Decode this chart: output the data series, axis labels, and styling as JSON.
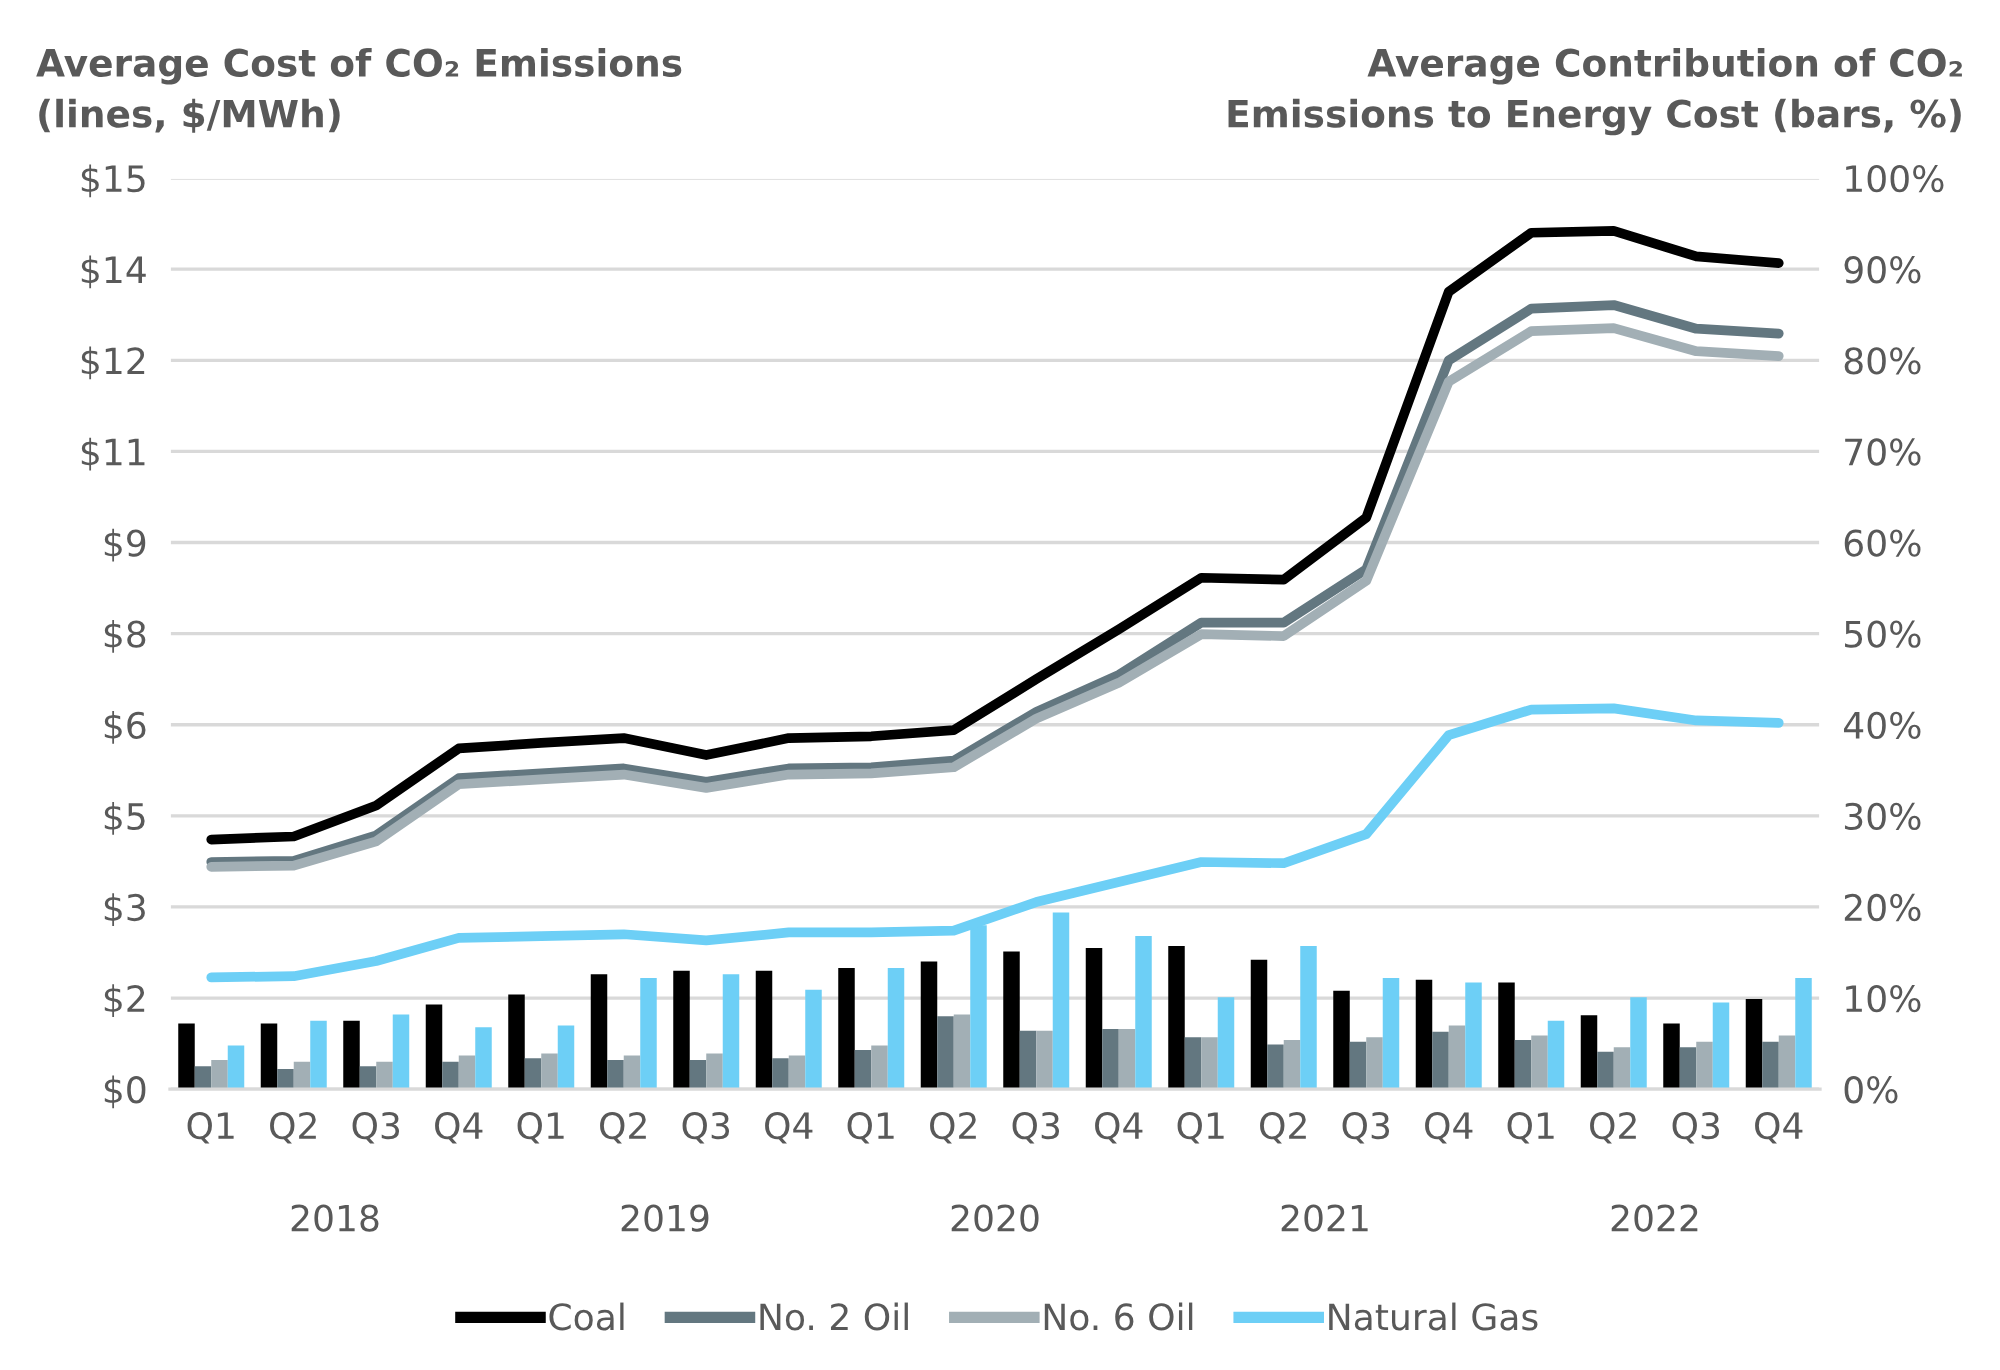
{
  "chart_data": {
    "type": "bar",
    "ylabel": "Average Cost of CO₂ Emissions\n(lines, $/MWh)",
    "y2label": "Average Contribution of CO₂\nEmissions to Energy Cost (bars, %)",
    "categories": [
      "Q1",
      "Q2",
      "Q3",
      "Q4",
      "Q1",
      "Q2",
      "Q3",
      "Q4",
      "Q1",
      "Q2",
      "Q3",
      "Q4",
      "Q1",
      "Q2",
      "Q3",
      "Q4",
      "Q1",
      "Q2",
      "Q3",
      "Q4"
    ],
    "annotations": [
      "2018",
      "2019",
      "2020",
      "2021",
      "2022"
    ],
    "series": [
      {
        "axis": "y2",
        "color": "#000000",
        "values": [
          7.2,
          7.2,
          7.5,
          9.3,
          10.4,
          12.6,
          13.0,
          13.0,
          13.3,
          14.0,
          15.1,
          15.5,
          15.7,
          14.2,
          10.8,
          12.0,
          11.7,
          8.1,
          7.2,
          9.9
        ]
      },
      {
        "axis": "y2",
        "color": "#637780",
        "values": [
          2.5,
          2.2,
          2.5,
          3.0,
          3.4,
          3.2,
          3.2,
          3.4,
          4.3,
          8.0,
          6.4,
          6.6,
          5.7,
          4.9,
          5.2,
          6.3,
          5.4,
          4.1,
          4.6,
          5.2
        ]
      },
      {
        "axis": "y2",
        "color": "#a2afb5",
        "values": [
          3.2,
          3.0,
          3.0,
          3.7,
          3.9,
          3.7,
          3.9,
          3.7,
          4.8,
          8.2,
          6.4,
          6.6,
          5.7,
          5.4,
          5.7,
          7.0,
          5.9,
          4.6,
          5.2,
          5.9
        ]
      },
      {
        "axis": "y2",
        "color": "#6dcff6",
        "values": [
          4.8,
          7.5,
          8.2,
          6.8,
          7.0,
          12.2,
          12.6,
          10.9,
          13.3,
          18.0,
          19.4,
          16.8,
          10.1,
          15.7,
          12.2,
          11.7,
          7.5,
          10.1,
          9.5,
          12.2
        ]
      },
      {
        "type": "line",
        "name": "Coal",
        "color": "#000000",
        "values": [
          4.11,
          4.16,
          4.67,
          5.61,
          5.7,
          5.78,
          5.5,
          5.78,
          5.81,
          5.91,
          6.75,
          7.57,
          8.42,
          8.39,
          9.41,
          13.13,
          14.1,
          14.13,
          13.71,
          13.6
        ]
      },
      {
        "type": "line",
        "name": "No. 2 Oil",
        "color": "#637780",
        "values": [
          3.74,
          3.76,
          4.18,
          5.12,
          5.2,
          5.28,
          5.06,
          5.28,
          5.3,
          5.41,
          6.21,
          6.82,
          7.68,
          7.68,
          8.56,
          12.0,
          12.85,
          12.91,
          12.52,
          12.44
        ]
      },
      {
        "type": "line",
        "name": "No. 6 Oil",
        "color": "#a2afb5",
        "values": [
          3.66,
          3.68,
          4.08,
          5.02,
          5.1,
          5.18,
          4.96,
          5.18,
          5.2,
          5.3,
          6.1,
          6.69,
          7.49,
          7.46,
          8.37,
          11.65,
          12.48,
          12.53,
          12.15,
          12.07
        ]
      },
      {
        "type": "line",
        "name": "Natural Gas",
        "color": "#6dcff6",
        "values": [
          1.84,
          1.86,
          2.11,
          2.49,
          2.52,
          2.55,
          2.45,
          2.58,
          2.58,
          2.61,
          3.08,
          3.41,
          3.74,
          3.72,
          4.2,
          5.83,
          6.25,
          6.27,
          6.07,
          6.03
        ]
      }
    ],
    "ylim": [
      0,
      15
    ],
    "yticks": [
      {
        "value": 0,
        "label": "$0"
      },
      {
        "value": 1.5,
        "label": "$2"
      },
      {
        "value": 3,
        "label": "$3"
      },
      {
        "value": 4.5,
        "label": "$5"
      },
      {
        "value": 6,
        "label": "$6"
      },
      {
        "value": 7.5,
        "label": "$8"
      },
      {
        "value": 9,
        "label": "$9"
      },
      {
        "value": 10.5,
        "label": "$11"
      },
      {
        "value": 12,
        "label": "$12"
      },
      {
        "value": 13.5,
        "label": "$14"
      },
      {
        "value": 15,
        "label": "$15"
      }
    ],
    "y2lim": [
      0,
      100
    ],
    "y2ticks": [
      {
        "value": 0,
        "label": "0%"
      },
      {
        "value": 10,
        "label": "10%"
      },
      {
        "value": 20,
        "label": "20%"
      },
      {
        "value": 30,
        "label": "30%"
      },
      {
        "value": 40,
        "label": "40%"
      },
      {
        "value": 50,
        "label": "50%"
      },
      {
        "value": 60,
        "label": "60%"
      },
      {
        "value": 70,
        "label": "70%"
      },
      {
        "value": 80,
        "label": "80%"
      },
      {
        "value": 90,
        "label": "90%"
      },
      {
        "value": 100,
        "label": "100%"
      }
    ],
    "grid": "y",
    "legend": "bottom"
  }
}
